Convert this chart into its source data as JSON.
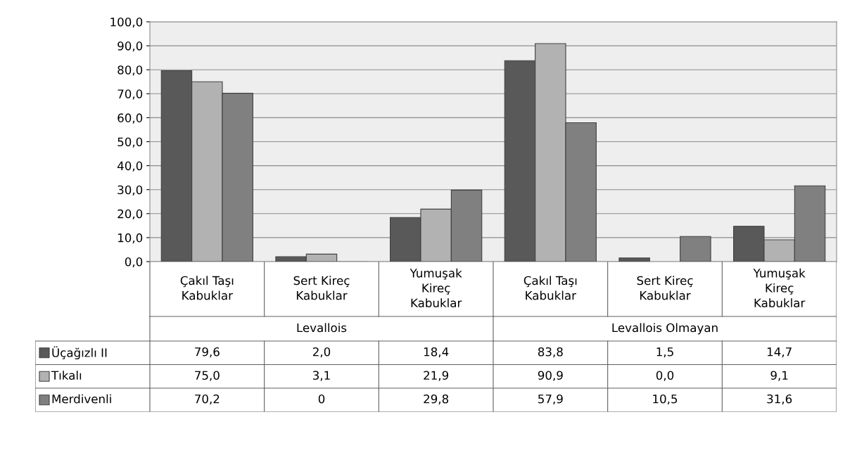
{
  "chart_data": {
    "type": "bar",
    "categories": [
      "Çakıl Taşı\nKabuklar",
      "Sert Kireç\nKabuklar",
      "Yumuşak\nKireç\nKabuklar",
      "Çakıl Taşı\nKabuklar",
      "Sert Kireç\nKabuklar",
      "Yumuşak\nKireç\nKabuklar"
    ],
    "annotations": [
      "Levallois",
      "Levallois Olmayan"
    ],
    "series": [
      {
        "name": "Üçağızlı II",
        "color": "#595959",
        "values": [
          79.6,
          2.0,
          18.4,
          83.8,
          1.5,
          14.7
        ],
        "value_labels": [
          "79,6",
          "2,0",
          "18,4",
          "83,8",
          "1,5",
          "14,7"
        ]
      },
      {
        "name": "Tıkalı",
        "color": "#b2b2b2",
        "values": [
          75.0,
          3.1,
          21.9,
          90.9,
          0.0,
          9.1
        ],
        "value_labels": [
          "75,0",
          "3,1",
          "21,9",
          "90,9",
          "0,0",
          "9,1"
        ]
      },
      {
        "name": "Merdivenli",
        "color": "#808080",
        "values": [
          70.2,
          0,
          29.8,
          57.9,
          10.5,
          31.6
        ],
        "value_labels": [
          "70,2",
          "0",
          "29,8",
          "57,9",
          "10,5",
          "31,6"
        ]
      }
    ],
    "ylim": [
      0,
      100
    ],
    "yticks": [
      {
        "value": 0,
        "label": "0,0"
      },
      {
        "value": 10,
        "label": "10,0"
      },
      {
        "value": 20,
        "label": "20,0"
      },
      {
        "value": 30,
        "label": "30,0"
      },
      {
        "value": 40,
        "label": "40,0"
      },
      {
        "value": 50,
        "label": "50,0"
      },
      {
        "value": 60,
        "label": "60,0"
      },
      {
        "value": 70,
        "label": "70,0"
      },
      {
        "value": 80,
        "label": "80,0"
      },
      {
        "value": 90,
        "label": "90,0"
      },
      {
        "value": 100,
        "label": "100,0"
      }
    ],
    "grid": "y",
    "legend": "bottom"
  }
}
